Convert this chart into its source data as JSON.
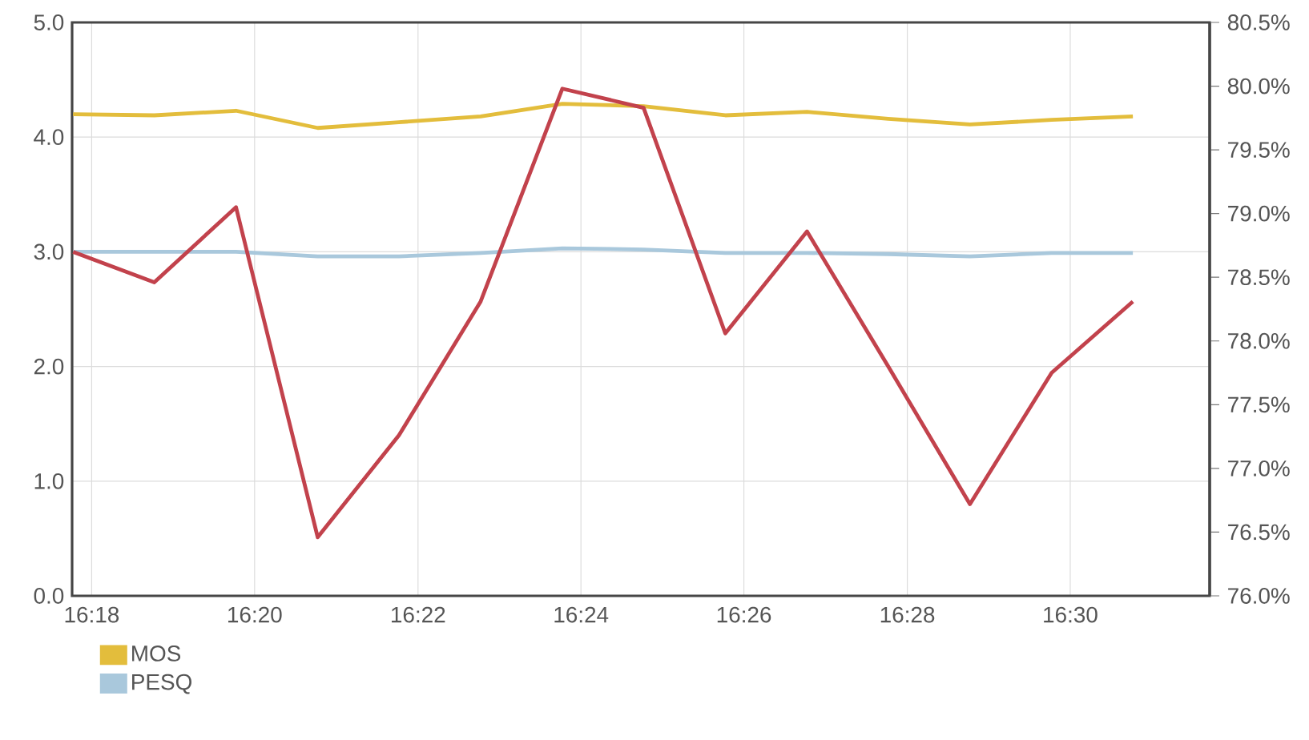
{
  "chart_data": {
    "type": "line",
    "x": [
      16.2962,
      16.3128,
      16.3295,
      16.3462,
      16.3628,
      16.3795,
      16.3962,
      16.4128,
      16.4295,
      16.4462,
      16.4628,
      16.4795,
      16.4962,
      16.5128
    ],
    "series": [
      {
        "name": "MOS",
        "color": "#e3bd3c",
        "values": [
          4.2,
          4.19,
          4.23,
          4.08,
          4.13,
          4.18,
          4.29,
          4.27,
          4.19,
          4.22,
          4.16,
          4.11,
          4.15,
          4.18
        ]
      },
      {
        "name": "PESQ",
        "color": "#a9c8dc",
        "values": [
          3.0,
          3.0,
          3.0,
          2.96,
          2.96,
          2.99,
          3.03,
          3.02,
          2.99,
          2.99,
          2.98,
          2.96,
          2.99,
          2.99
        ]
      },
      {
        "color": "#c2424c",
        "axis": "y2",
        "values": [
          78.7,
          78.46,
          79.05,
          76.46,
          77.26,
          78.31,
          79.98,
          79.83,
          78.06,
          78.86,
          77.8,
          76.72,
          77.75,
          78.31
        ]
      }
    ],
    "xlim": [
      16.296,
      16.5285
    ],
    "xticks": [
      {
        "value": 16.3,
        "label": "16:18"
      },
      {
        "value": 16.3333,
        "label": "16:20"
      },
      {
        "value": 16.3667,
        "label": "16:22"
      },
      {
        "value": 16.4,
        "label": "16:24"
      },
      {
        "value": 16.4333,
        "label": "16:26"
      },
      {
        "value": 16.4667,
        "label": "16:28"
      },
      {
        "value": 16.5,
        "label": "16:30"
      }
    ],
    "ylim": [
      0,
      5
    ],
    "yticks": [
      {
        "value": 0,
        "label": "0.0"
      },
      {
        "value": 1,
        "label": "1.0"
      },
      {
        "value": 2,
        "label": "2.0"
      },
      {
        "value": 3,
        "label": "3.0"
      },
      {
        "value": 4,
        "label": "4.0"
      },
      {
        "value": 5,
        "label": "5.0"
      }
    ],
    "y2lim": [
      76,
      80.5
    ],
    "y2ticks": [
      {
        "value": 76,
        "label": "76.0%"
      },
      {
        "value": 76.5,
        "label": "76.5%"
      },
      {
        "value": 77,
        "label": "77.0%"
      },
      {
        "value": 77.5,
        "label": "77.5%"
      },
      {
        "value": 78,
        "label": "78.0%"
      },
      {
        "value": 78.5,
        "label": "78.5%"
      },
      {
        "value": 79,
        "label": "79.0%"
      },
      {
        "value": 79.5,
        "label": "79.5%"
      },
      {
        "value": 80,
        "label": "80.0%"
      },
      {
        "value": 80.5,
        "label": "80.5%"
      }
    ],
    "grid": true,
    "legend": "bottom",
    "line_style": "solid",
    "marker": "none"
  }
}
